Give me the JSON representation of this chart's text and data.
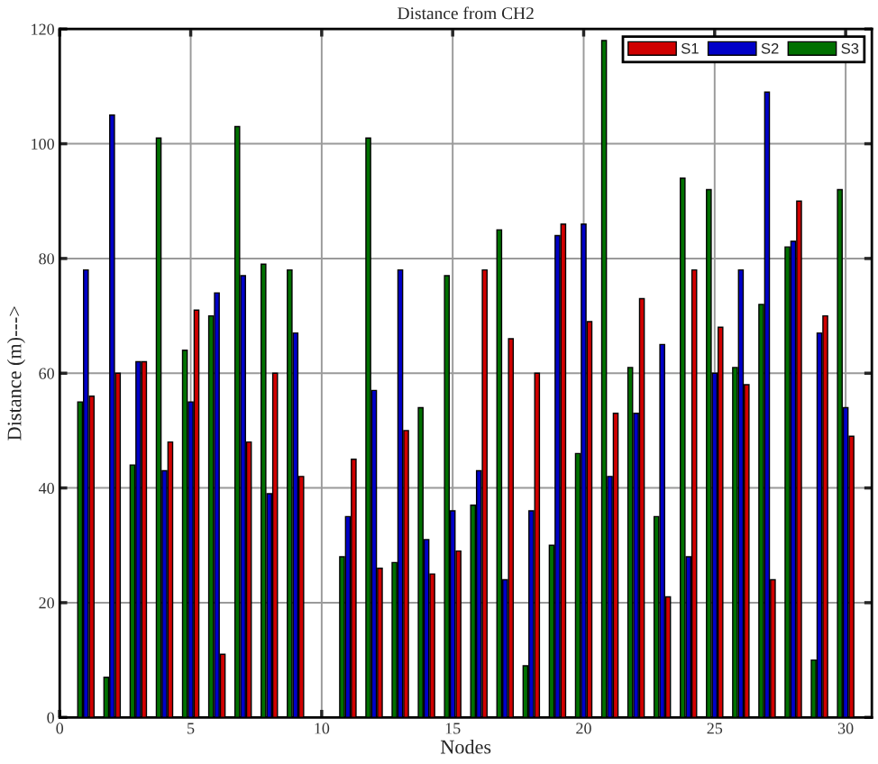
{
  "chart_data": {
    "type": "bar",
    "title": "Distance from CH2",
    "xlabel": "Nodes",
    "ylabel": "Distance (m)--->",
    "x": [
      1,
      2,
      3,
      4,
      5,
      6,
      7,
      8,
      9,
      10,
      11,
      12,
      13,
      14,
      15,
      16,
      17,
      18,
      19,
      20,
      21,
      22,
      23,
      24,
      25,
      26,
      27,
      28,
      29,
      30
    ],
    "series": [
      {
        "name": "S1",
        "color": "#d00000",
        "values": [
          56,
          60,
          62,
          48,
          71,
          11,
          48,
          60,
          42,
          null,
          45,
          26,
          50,
          25,
          29,
          78,
          66,
          60,
          86,
          69,
          53,
          73,
          21,
          78,
          68,
          58,
          24,
          90,
          70,
          49
        ]
      },
      {
        "name": "S2",
        "color": "#0000c8",
        "values": [
          78,
          105,
          62,
          43,
          55,
          74,
          77,
          39,
          67,
          null,
          35,
          57,
          78,
          31,
          36,
          43,
          24,
          36,
          84,
          86,
          42,
          53,
          65,
          28,
          60,
          78,
          109,
          83,
          67,
          54
        ]
      },
      {
        "name": "S3",
        "color": "#007000",
        "values": [
          55,
          7,
          44,
          101,
          64,
          70,
          103,
          79,
          78,
          null,
          28,
          101,
          27,
          54,
          77,
          37,
          85,
          9,
          30,
          46,
          118,
          61,
          35,
          94,
          92,
          61,
          72,
          82,
          10,
          92
        ]
      }
    ],
    "xlim": [
      0,
      31
    ],
    "xticks": [
      0,
      5,
      10,
      15,
      20,
      25,
      30
    ],
    "ylim": [
      0,
      120
    ],
    "yticks": [
      0,
      20,
      40,
      60,
      80,
      100,
      120
    ],
    "grid": true,
    "legend": "top right"
  }
}
